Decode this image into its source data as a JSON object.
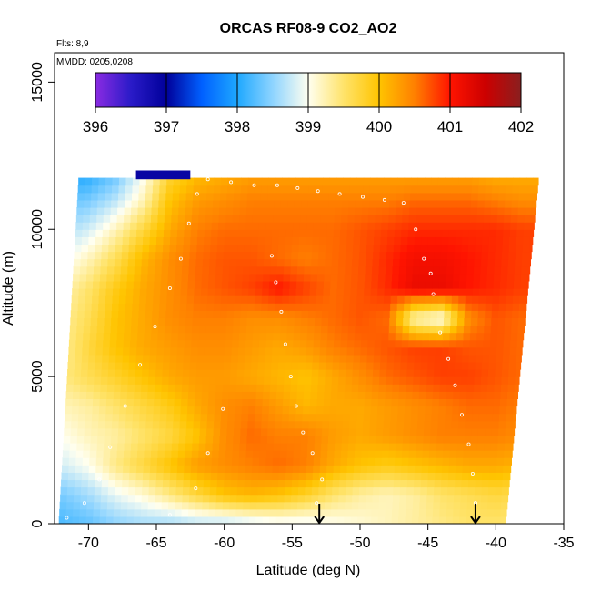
{
  "chart_data": {
    "type": "heatmap",
    "title": "ORCAS RF08-9 CO2_AO2",
    "annotations": [
      "Flts: 8,9",
      "MMDD: 0205,0208"
    ],
    "xlabel": "Latitude (deg N)",
    "ylabel": "Altitude (m)",
    "xlim": [
      -72.5,
      -35
    ],
    "ylim": [
      0,
      16000
    ],
    "xticks": [
      -70,
      -65,
      -60,
      -55,
      -50,
      -45,
      -40,
      -35
    ],
    "yticks": [
      0,
      5000,
      10000,
      15000
    ],
    "colorbar": {
      "ticks": [
        396,
        397,
        398,
        399,
        400,
        401,
        402
      ],
      "range": [
        396,
        402
      ],
      "stops": [
        {
          "value": 396.0,
          "color": "#8a2be2"
        },
        {
          "value": 396.5,
          "color": "#2a1bc8"
        },
        {
          "value": 397.0,
          "color": "#00009a"
        },
        {
          "value": 397.5,
          "color": "#0060ff"
        },
        {
          "value": 398.0,
          "color": "#1ea8ff"
        },
        {
          "value": 398.5,
          "color": "#8ed4ff"
        },
        {
          "value": 399.0,
          "color": "#fffff0"
        },
        {
          "value": 399.5,
          "color": "#ffe36a"
        },
        {
          "value": 400.0,
          "color": "#ffc400"
        },
        {
          "value": 400.5,
          "color": "#ff8000"
        },
        {
          "value": 401.0,
          "color": "#ff1400"
        },
        {
          "value": 401.5,
          "color": "#cc0000"
        },
        {
          "value": 402.0,
          "color": "#8a1f1f"
        }
      ]
    },
    "domain_left_edge": [
      [
        0,
        -72.2
      ],
      [
        12000,
        -70.7
      ]
    ],
    "domain_right_edge": [
      [
        0,
        -39.3
      ],
      [
        12000,
        -36.8
      ]
    ],
    "domain_top": 11700,
    "field_profile": {
      "latitudes": [
        -72,
        -70,
        -68,
        -66,
        -64,
        -62,
        -60,
        -58,
        -56,
        -54,
        -52,
        -50,
        -48,
        -46,
        -44,
        -42,
        -40,
        -38
      ],
      "altitude_rows": [
        {
          "alt": 0,
          "co2": [
            398.2,
            398.3,
            398.5,
            398.6,
            398.6,
            398.7,
            398.7,
            398.8,
            398.9,
            398.9,
            399.0,
            399.1,
            399.2,
            399.3,
            399.4,
            399.5,
            399.5,
            399.4
          ]
        },
        {
          "alt": 1000,
          "co2": [
            398.4,
            398.6,
            398.9,
            399.1,
            399.4,
            399.7,
            400.0,
            400.1,
            400.0,
            399.8,
            399.5,
            399.3,
            399.2,
            399.3,
            399.5,
            399.6,
            399.7,
            399.6
          ]
        },
        {
          "alt": 2000,
          "co2": [
            398.8,
            399.0,
            399.4,
            399.7,
            400.0,
            400.3,
            400.4,
            400.5,
            400.6,
            400.5,
            400.2,
            400.0,
            399.9,
            400.0,
            400.1,
            400.2,
            400.2,
            400.1
          ]
        },
        {
          "alt": 3000,
          "co2": [
            399.0,
            399.2,
            399.3,
            399.5,
            399.7,
            400.0,
            400.4,
            400.6,
            400.5,
            400.5,
            400.3,
            400.2,
            400.3,
            400.4,
            400.5,
            400.5,
            400.5,
            400.4
          ]
        },
        {
          "alt": 4000,
          "co2": [
            399.2,
            399.3,
            399.5,
            399.7,
            399.9,
            400.2,
            400.4,
            400.5,
            400.3,
            400.1,
            400.2,
            400.2,
            400.3,
            400.4,
            400.5,
            400.6,
            400.6,
            400.5
          ]
        },
        {
          "alt": 5000,
          "co2": [
            399.4,
            399.6,
            399.8,
            400.0,
            400.2,
            400.3,
            400.3,
            400.2,
            400.1,
            400.0,
            400.2,
            400.4,
            400.6,
            400.7,
            400.8,
            400.8,
            400.7,
            400.6
          ]
        },
        {
          "alt": 6000,
          "co2": [
            399.3,
            399.7,
            400.0,
            400.2,
            400.3,
            400.4,
            400.4,
            400.3,
            400.2,
            400.3,
            400.5,
            400.6,
            400.7,
            400.8,
            400.8,
            400.7,
            400.7,
            400.6
          ]
        },
        {
          "alt": 7000,
          "co2": [
            399.3,
            399.6,
            400.0,
            400.2,
            400.4,
            400.5,
            400.5,
            400.4,
            400.4,
            400.5,
            400.6,
            400.7,
            400.6,
            399.2,
            399.0,
            400.4,
            400.7,
            400.6
          ]
        },
        {
          "alt": 8000,
          "co2": [
            399.2,
            399.5,
            399.9,
            400.2,
            400.4,
            400.6,
            400.7,
            400.8,
            401.0,
            400.8,
            400.6,
            400.7,
            400.9,
            401.2,
            401.2,
            401.0,
            400.9,
            400.8
          ]
        },
        {
          "alt": 9000,
          "co2": [
            398.9,
            399.2,
            399.6,
            400.1,
            400.4,
            400.6,
            400.7,
            400.7,
            400.6,
            400.5,
            400.6,
            400.7,
            400.9,
            401.1,
            401.1,
            401.0,
            400.9,
            400.8
          ]
        },
        {
          "alt": 10000,
          "co2": [
            398.6,
            398.8,
            399.2,
            399.7,
            400.2,
            400.5,
            400.6,
            400.6,
            400.6,
            400.6,
            400.6,
            400.7,
            400.8,
            400.9,
            400.9,
            400.9,
            400.9,
            400.8
          ]
        },
        {
          "alt": 11000,
          "co2": [
            398.3,
            398.4,
            398.7,
            399.2,
            400.0,
            400.3,
            400.4,
            400.5,
            400.5,
            400.5,
            400.5,
            400.5,
            400.5,
            400.6,
            400.6,
            400.6,
            400.5,
            400.4
          ]
        },
        {
          "alt": 11700,
          "co2": [
            398.0,
            398.1,
            398.4,
            399.0,
            399.8,
            400.1,
            400.2,
            400.3,
            400.3,
            400.3,
            400.3,
            400.3,
            400.3,
            400.3,
            400.3,
            400.3,
            400.2,
            400.2
          ]
        }
      ]
    },
    "top_segment": {
      "lat_start": -66.5,
      "lat_end": -62.5,
      "alt_start": 11700,
      "alt_end": 12000,
      "co2": 396.9
    },
    "markers": [
      {
        "type": "arrow",
        "lat": -53
      },
      {
        "type": "arrow",
        "lat": -41.5
      }
    ],
    "flight_track_points": [
      [
        -71.6,
        200
      ],
      [
        -70.3,
        700
      ],
      [
        -69.2,
        1500
      ],
      [
        -68.4,
        2600
      ],
      [
        -67.3,
        4000
      ],
      [
        -66.2,
        5400
      ],
      [
        -65.1,
        6700
      ],
      [
        -64.0,
        8000
      ],
      [
        -63.2,
        9000
      ],
      [
        -62.6,
        10200
      ],
      [
        -62.0,
        11200
      ],
      [
        -61.2,
        11700
      ],
      [
        -59.5,
        11600
      ],
      [
        -57.8,
        11500
      ],
      [
        -56.1,
        11500
      ],
      [
        -54.6,
        11400
      ],
      [
        -53.1,
        11300
      ],
      [
        -51.5,
        11200
      ],
      [
        -49.8,
        11100
      ],
      [
        -48.2,
        11000
      ],
      [
        -46.8,
        10900
      ],
      [
        -45.9,
        10000
      ],
      [
        -45.3,
        9000
      ],
      [
        -44.8,
        8500
      ],
      [
        -44.6,
        7800
      ],
      [
        -44.1,
        6500
      ],
      [
        -43.5,
        5600
      ],
      [
        -43.0,
        4700
      ],
      [
        -42.5,
        3700
      ],
      [
        -42.0,
        2700
      ],
      [
        -41.7,
        1700
      ],
      [
        -41.5,
        700
      ],
      [
        -53.2,
        700
      ],
      [
        -52.8,
        1500
      ],
      [
        -53.5,
        2400
      ],
      [
        -54.2,
        3100
      ],
      [
        -54.7,
        4000
      ],
      [
        -55.1,
        5000
      ],
      [
        -55.5,
        6100
      ],
      [
        -55.8,
        7200
      ],
      [
        -56.2,
        8200
      ],
      [
        -56.5,
        9100
      ],
      [
        -60.1,
        3900
      ],
      [
        -61.2,
        2400
      ],
      [
        -62.1,
        1200
      ],
      [
        -64.0,
        300
      ]
    ]
  }
}
